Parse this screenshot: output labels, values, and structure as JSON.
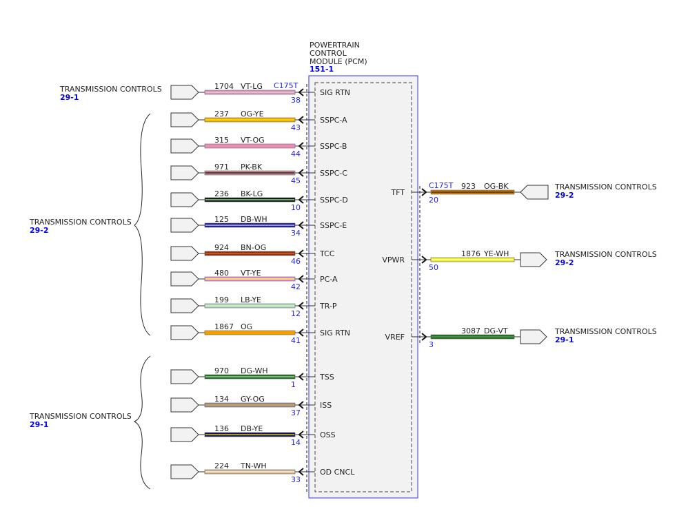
{
  "module": {
    "title_lines": [
      "POWERTRAIN",
      "CONTROL",
      "MODULE (PCM)"
    ],
    "ref": "151-1",
    "box_color": "#3333ff"
  },
  "connector_id": "C175T",
  "left_group_labels": [
    {
      "name": "TRANSMISSION CONTROLS",
      "ref": "29-1"
    },
    {
      "name": "TRANSMISSION CONTROLS",
      "ref": "29-2"
    },
    {
      "name": "TRANSMISSION CONTROLS",
      "ref": "29-1"
    }
  ],
  "left_wires": [
    {
      "circuit": "1704",
      "color_code": "VT-LG",
      "pin": "38",
      "signal": "SIG RTN",
      "main": "#e58ad6",
      "stripe": "#c8e6a0"
    },
    {
      "circuit": "237",
      "color_code": "OG-YE",
      "pin": "43",
      "signal": "SSPC-A",
      "main": "#f5a800",
      "stripe": "#ffe000"
    },
    {
      "circuit": "315",
      "color_code": "VT-OG",
      "pin": "44",
      "signal": "SSPC-B",
      "main": "#e58ad6",
      "stripe": "#f59a60"
    },
    {
      "circuit": "971",
      "color_code": "PK-BK",
      "pin": "45",
      "signal": "SSPC-C",
      "main": "#c08890",
      "stripe": "#402020"
    },
    {
      "circuit": "236",
      "color_code": "BK-LG",
      "pin": "10",
      "signal": "SSPC-D",
      "main": "#111111",
      "stripe": "#90e090"
    },
    {
      "circuit": "125",
      "color_code": "DB-WH",
      "pin": "34",
      "signal": "SSPC-E",
      "main": "#1a1a8a",
      "stripe": "#c0c0ff"
    },
    {
      "circuit": "924",
      "color_code": "BN-OG",
      "pin": "46",
      "signal": "TCC",
      "main": "#8b3010",
      "stripe": "#e06020"
    },
    {
      "circuit": "480",
      "color_code": "VT-YE",
      "pin": "42",
      "signal": "PC-A",
      "main": "#e58ad6",
      "stripe": "#ffff40"
    },
    {
      "circuit": "199",
      "color_code": "LB-YE",
      "pin": "12",
      "signal": "TR-P",
      "main": "#a8d8d0",
      "stripe": "#e8f0a0"
    },
    {
      "circuit": "1867",
      "color_code": "OG",
      "pin": "41",
      "signal": "SIG RTN",
      "main": "#f5a000",
      "stripe": "#f5a000"
    },
    {
      "circuit": "970",
      "color_code": "DG-WH",
      "pin": "1",
      "signal": "TSS",
      "main": "#1f6e1f",
      "stripe": "#a0d0a0"
    },
    {
      "circuit": "134",
      "color_code": "GY-OG",
      "pin": "37",
      "signal": "ISS",
      "main": "#909090",
      "stripe": "#f0a040"
    },
    {
      "circuit": "136",
      "color_code": "DB-YE",
      "pin": "14",
      "signal": "OSS",
      "main": "#101060",
      "stripe": "#e0c000"
    },
    {
      "circuit": "224",
      "color_code": "TN-WH",
      "pin": "33",
      "signal": "OD CNCL",
      "main": "#d2b48c",
      "stripe": "#fff0e0"
    }
  ],
  "right_wires": [
    {
      "circuit": "923",
      "color_code": "OG-BK",
      "pin": "20",
      "signal": "TFT",
      "main": "#c87a10",
      "stripe": "#402000",
      "dest": "TRANSMISSION CONTROLS",
      "ref": "29-2",
      "connector": "C175T"
    },
    {
      "circuit": "1876",
      "color_code": "YE-WH",
      "pin": "50",
      "signal": "VPWR",
      "main": "#f0f020",
      "stripe": "#ffffc0",
      "dest": "TRANSMISSION CONTROLS",
      "ref": "29-2"
    },
    {
      "circuit": "3087",
      "color_code": "DG-VT",
      "pin": "3",
      "signal": "VREF",
      "main": "#1f6e1f",
      "stripe": "#60a060",
      "dest": "TRANSMISSION CONTROLS",
      "ref": "29-1"
    }
  ]
}
